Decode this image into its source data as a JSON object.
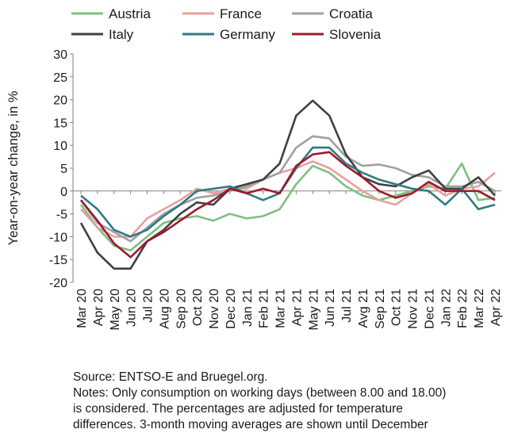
{
  "chart_data": {
    "type": "line",
    "title": "",
    "ylabel": "Year-on-year change, in %",
    "ylim": [
      -20,
      30
    ],
    "yticks": [
      30,
      25,
      20,
      15,
      10,
      5,
      0,
      -5,
      -10,
      -15,
      -20
    ],
    "grid": false,
    "legend_position": "top",
    "categories": [
      "Mar 20",
      "Apr 20",
      "May 20",
      "Jun 20",
      "Jul 20",
      "Aug 20",
      "Sep 20",
      "Oct 20",
      "Nov 20",
      "Dec 20",
      "Jan 21",
      "Feb 21",
      "Mar 21",
      "Apr 21",
      "May 21",
      "Jun 21",
      "Jul 21",
      "Avg 21",
      "Sep 21",
      "Oct 21",
      "Nov 21",
      "Dec 21",
      "Jan 22",
      "Feb 22",
      "Mar 22",
      "Apr 22"
    ],
    "series": [
      {
        "name": "Austria",
        "color": "#7fbf7f",
        "values": [
          -3,
          -8,
          -12,
          -13,
          -10,
          -7,
          -6,
          -5.5,
          -6.5,
          -5,
          -6,
          -5.5,
          -4,
          1.5,
          5.5,
          4,
          1,
          -1,
          -2,
          -1,
          0,
          1,
          0.5,
          6,
          -2,
          -1.5
        ]
      },
      {
        "name": "France",
        "color": "#e8a09e",
        "values": [
          -4,
          -8,
          -10,
          -10,
          -6,
          -4,
          -2,
          0.5,
          -0.5,
          0.5,
          0.5,
          2.5,
          4,
          5,
          6.5,
          5,
          2.5,
          0,
          -2,
          -3,
          -0.5,
          1.5,
          -1,
          0.5,
          1,
          4
        ]
      },
      {
        "name": "Croatia",
        "color": "#a0a0a0",
        "values": [
          -2,
          -7,
          -9,
          -11,
          -8,
          -5,
          -3,
          -1.5,
          -1,
          0,
          1,
          2.5,
          4,
          9.5,
          12,
          11.5,
          7.5,
          5.5,
          5.8,
          5,
          3.5,
          3,
          1,
          1,
          2,
          0
        ]
      },
      {
        "name": "Italy",
        "color": "#404040",
        "values": [
          -7,
          -13.5,
          -17,
          -17,
          -11,
          -8.5,
          -5,
          -2.5,
          -3,
          0.5,
          1.5,
          2.5,
          6,
          16.5,
          19.8,
          16.5,
          8,
          3,
          1.5,
          1,
          3,
          4.5,
          0.5,
          0.5,
          3,
          -1
        ]
      },
      {
        "name": "Germany",
        "color": "#2f7a84",
        "values": [
          -1,
          -4,
          -8.5,
          -10,
          -8.5,
          -5.5,
          -3,
          0,
          0.5,
          1,
          -0.5,
          -2,
          -0.5,
          5,
          9.5,
          9.5,
          6,
          4,
          2.5,
          1.5,
          0.5,
          0,
          -3,
          0.5,
          -4,
          -3
        ]
      },
      {
        "name": "Slovenia",
        "color": "#9c1b2f",
        "values": [
          -2,
          -6.5,
          -11.5,
          -14.5,
          -11,
          -9,
          -6.5,
          -4,
          -2,
          0.5,
          -0.5,
          0.5,
          -0.5,
          5.5,
          8,
          8.5,
          5.5,
          3,
          0,
          -1.5,
          -0.5,
          2,
          0,
          0,
          0,
          -2
        ]
      }
    ]
  },
  "notes": {
    "source": "Source: ENTSO-E and Bruegel.org.",
    "line1": "Notes: Only consumption on working days (between 8.00 and 18.00)",
    "line2": "is considered. The percentages are adjusted for temperature",
    "line3": "differences. 3-month moving averages are shown until December"
  }
}
